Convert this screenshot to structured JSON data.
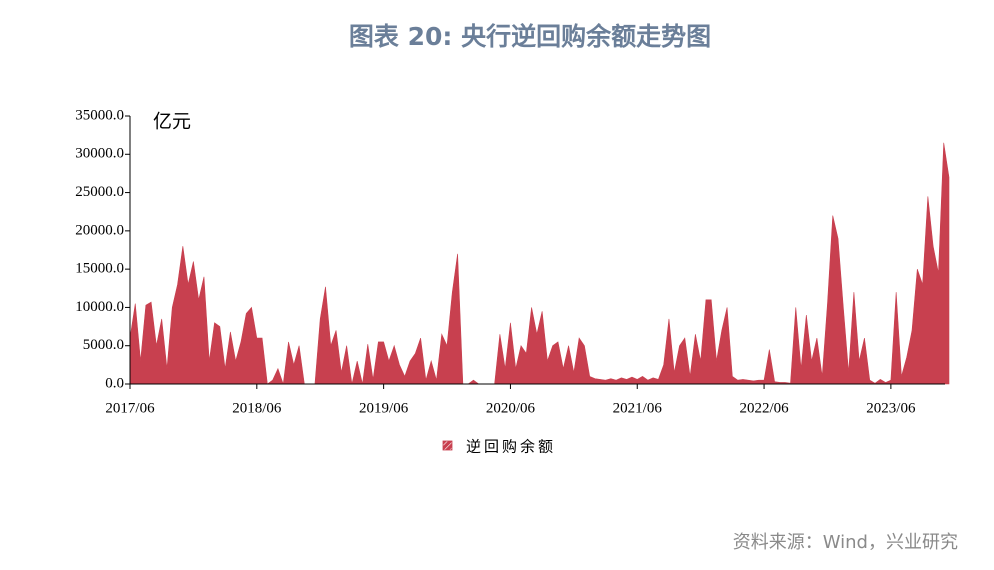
{
  "chart_data": {
    "type": "area",
    "title": "图表 20: 央行逆回购余额走势图",
    "unit_label": "亿元",
    "source": "资料来源：Wind，兴业研究",
    "categories": [
      "2017/06",
      null,
      null,
      null,
      null,
      null,
      null,
      null,
      null,
      null,
      null,
      null,
      null,
      null,
      null,
      null,
      null,
      null,
      null,
      null,
      null,
      null,
      null,
      null,
      "2018/06",
      null,
      null,
      null,
      null,
      null,
      null,
      null,
      null,
      null,
      null,
      null,
      null,
      null,
      null,
      null,
      null,
      null,
      null,
      null,
      null,
      null,
      null,
      null,
      "2019/06",
      null,
      null,
      null,
      null,
      null,
      null,
      null,
      null,
      null,
      null,
      null,
      null,
      null,
      null,
      null,
      null,
      null,
      null,
      null,
      null,
      null,
      null,
      null,
      "2020/06",
      null,
      null,
      null,
      null,
      null,
      null,
      null,
      null,
      null,
      null,
      null,
      null,
      null,
      null,
      null,
      null,
      null,
      null,
      null,
      null,
      null,
      null,
      null,
      "2021/06",
      null,
      null,
      null,
      null,
      null,
      null,
      null,
      null,
      null,
      null,
      null,
      null,
      null,
      null,
      null,
      null,
      null,
      null,
      null,
      null,
      null,
      null,
      null,
      "2022/06",
      null,
      null,
      null,
      null,
      null,
      null,
      null,
      null,
      null,
      null,
      null,
      null,
      null,
      null,
      null,
      null,
      null,
      null,
      null,
      null,
      null,
      null,
      null,
      "2023/06",
      null,
      null,
      null,
      null,
      null,
      null,
      null,
      null,
      null,
      null,
      null
    ],
    "series": [
      {
        "name": "逆回购余额",
        "color": "#c8404f",
        "values": [
          6000,
          10500,
          3000,
          10300,
          10700,
          5000,
          8500,
          2000,
          10000,
          13000,
          18000,
          13000,
          16000,
          11000,
          14000,
          3000,
          8000,
          7500,
          2000,
          6800,
          3000,
          5500,
          9200,
          10000,
          6000,
          6000,
          0,
          500,
          2000,
          0,
          5500,
          2500,
          5000,
          0,
          0,
          0,
          8500,
          12700,
          5000,
          7000,
          1500,
          5000,
          0,
          3000,
          0,
          5200,
          600,
          5500,
          5500,
          3000,
          5000,
          2500,
          1000,
          3000,
          4000,
          6000,
          500,
          3000,
          500,
          6500,
          5000,
          12000,
          17000,
          0,
          0,
          500,
          0,
          0,
          0,
          0,
          6500,
          2000,
          8000,
          2000,
          5000,
          4000,
          10000,
          6500,
          9500,
          3000,
          5000,
          5500,
          2000,
          5000,
          1500,
          6000,
          5000,
          1000,
          700,
          600,
          500,
          700,
          500,
          800,
          600,
          900,
          600,
          1000,
          500,
          800,
          600,
          2500,
          8500,
          1500,
          5000,
          6000,
          1000,
          6500,
          3000,
          11000,
          11000,
          3000,
          7000,
          10000,
          1000,
          500,
          600,
          500,
          400,
          500,
          500,
          4500,
          300,
          200,
          200,
          100,
          10000,
          2000,
          9000,
          3000,
          6000,
          1000,
          10500,
          22000,
          19000,
          10000,
          1500,
          12000,
          3000,
          6000,
          500,
          100,
          600,
          200,
          500,
          12000,
          1000,
          3500,
          7000,
          15000,
          13000,
          24500,
          18000,
          14500,
          31500,
          27000
        ]
      }
    ],
    "ylim": [
      0,
      35000
    ],
    "yticks": [
      {
        "value": 0,
        "label": "0.0"
      },
      {
        "value": 5000,
        "label": "5000.0"
      },
      {
        "value": 10000,
        "label": "10000.0"
      },
      {
        "value": 15000,
        "label": "15000.0"
      },
      {
        "value": 20000,
        "label": "20000.0"
      },
      {
        "value": 25000,
        "label": "25000.0"
      },
      {
        "value": 30000,
        "label": "30000.0"
      },
      {
        "value": 35000,
        "label": "35000.0"
      }
    ]
  }
}
